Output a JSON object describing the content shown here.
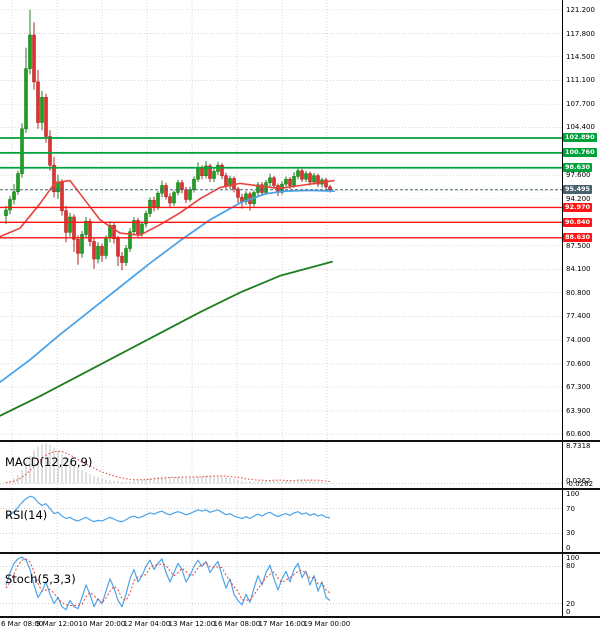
{
  "colors": {
    "background": "#ffffff",
    "grid": "#c9c9c9",
    "separator": "#111111",
    "axis_line": "#000000",
    "text": "#000000",
    "candle_up": "#1ba11b",
    "candle_up_border": "#0b6e0b",
    "candle_down": "#e03232",
    "candle_down_border": "#a81212",
    "ma_fast": "#e8423c",
    "ma_mid": "#4da3e8",
    "ma_slow": "#1e7d1e",
    "resistance_green": "#00a13a",
    "support_red": "#fe1414",
    "current_price_badge": "#48616f",
    "macd_hist": "#bfbfbf",
    "macd_signal": "#e8423c",
    "rsi_line": "#4da3e8",
    "stoch_k": "#4da3e8",
    "stoch_d": "#e8423c"
  },
  "chart_data": {
    "type": "candlestick",
    "x_axis": {
      "labels": [
        "6 Mar 08:00",
        "9 Mar 12:00",
        "10 Mar 20:00",
        "12 Mar 04:00",
        "13 Mar 12:00",
        "16 Mar 08:00",
        "17 Mar 16:00",
        "19 Mar 00:00"
      ]
    },
    "y_axis": {
      "range": [
        59.74,
        122.6
      ],
      "ticks": [
        "121.200",
        "117.800",
        "114.500",
        "111.100",
        "107.700",
        "104.400",
        "97.600",
        "94.200",
        "87.500",
        "84.100",
        "80.800",
        "77.400",
        "74.000",
        "70.600",
        "67.300",
        "63.900",
        "60.600"
      ],
      "grid_values": [
        121.2,
        117.8,
        114.5,
        111.1,
        107.7,
        104.4,
        101.0,
        97.6,
        94.2,
        90.8,
        87.5,
        84.1,
        80.8,
        77.4,
        74.0,
        70.6,
        67.3,
        63.9,
        60.6
      ]
    },
    "levels": {
      "resistance": [
        "102.890",
        "100.760",
        "98.630"
      ],
      "support": [
        "92.970",
        "90.840",
        "88.630"
      ],
      "current": "95.495"
    },
    "candles": [
      [
        91.8,
        93.2,
        90.6,
        92.6
      ],
      [
        92.6,
        94.6,
        92.0,
        94.1
      ],
      [
        94.1,
        96.3,
        93.4,
        95.2
      ],
      [
        95.2,
        98.2,
        94.8,
        97.8
      ],
      [
        97.8,
        105.0,
        97.2,
        104.2
      ],
      [
        104.2,
        115.8,
        103.6,
        112.8
      ],
      [
        112.8,
        121.2,
        112.0,
        117.6
      ],
      [
        117.6,
        119.4,
        109.8,
        110.9
      ],
      [
        110.9,
        112.6,
        104.2,
        105.1
      ],
      [
        105.1,
        109.6,
        104.0,
        108.7
      ],
      [
        108.7,
        109.2,
        102.2,
        103.1
      ],
      [
        103.1,
        104.0,
        98.2,
        99.0
      ],
      [
        99.0,
        100.2,
        94.4,
        95.2
      ],
      [
        95.2,
        97.6,
        94.2,
        96.6
      ],
      [
        96.6,
        97.0,
        91.8,
        92.5
      ],
      [
        92.5,
        93.2,
        88.0,
        89.4
      ],
      [
        89.4,
        92.2,
        88.8,
        91.6
      ],
      [
        91.6,
        92.0,
        86.6,
        88.4
      ],
      [
        88.4,
        89.0,
        84.8,
        86.4
      ],
      [
        86.4,
        89.6,
        85.8,
        89.1
      ],
      [
        89.1,
        91.6,
        88.6,
        91.0
      ],
      [
        91.0,
        91.4,
        87.4,
        88.1
      ],
      [
        88.1,
        88.6,
        84.2,
        85.6
      ],
      [
        85.6,
        88.0,
        85.0,
        87.4
      ],
      [
        87.4,
        87.8,
        85.2,
        86.1
      ],
      [
        86.1,
        89.0,
        85.6,
        88.6
      ],
      [
        88.6,
        91.0,
        88.0,
        90.4
      ],
      [
        90.4,
        90.8,
        87.8,
        88.5
      ],
      [
        88.5,
        88.9,
        84.6,
        86.0
      ],
      [
        86.0,
        86.6,
        84.0,
        85.1
      ],
      [
        85.1,
        87.6,
        84.6,
        87.1
      ],
      [
        87.1,
        90.0,
        86.6,
        89.5
      ],
      [
        89.5,
        91.6,
        89.0,
        91.1
      ],
      [
        91.1,
        91.5,
        88.6,
        89.2
      ],
      [
        89.2,
        91.0,
        88.8,
        90.6
      ],
      [
        90.6,
        92.5,
        90.1,
        92.1
      ],
      [
        92.1,
        94.4,
        91.6,
        94.0
      ],
      [
        94.0,
        94.5,
        92.4,
        93.0
      ],
      [
        93.0,
        95.3,
        92.6,
        95.0
      ],
      [
        95.0,
        96.8,
        94.4,
        96.1
      ],
      [
        96.1,
        96.5,
        94.1,
        94.5
      ],
      [
        94.5,
        95.0,
        93.0,
        93.6
      ],
      [
        93.6,
        95.4,
        93.2,
        95.1
      ],
      [
        95.1,
        96.9,
        94.7,
        96.5
      ],
      [
        96.5,
        96.9,
        95.0,
        95.5
      ],
      [
        95.5,
        95.9,
        93.6,
        94.1
      ],
      [
        94.1,
        95.9,
        93.8,
        95.5
      ],
      [
        95.5,
        97.4,
        95.1,
        97.0
      ],
      [
        97.0,
        99.4,
        96.6,
        98.6
      ],
      [
        98.6,
        99.0,
        97.0,
        97.5
      ],
      [
        97.5,
        99.6,
        97.1,
        98.9
      ],
      [
        98.9,
        99.2,
        96.6,
        97.1
      ],
      [
        97.1,
        98.5,
        96.6,
        98.1
      ],
      [
        98.1,
        99.5,
        97.6,
        99.0
      ],
      [
        99.0,
        99.3,
        97.0,
        97.5
      ],
      [
        97.5,
        97.9,
        95.6,
        96.0
      ],
      [
        96.0,
        97.5,
        95.6,
        97.1
      ],
      [
        97.1,
        97.4,
        95.1,
        95.6
      ],
      [
        95.6,
        95.9,
        93.6,
        94.4
      ],
      [
        94.4,
        94.9,
        92.8,
        93.8
      ],
      [
        93.8,
        95.3,
        93.3,
        94.9
      ],
      [
        94.9,
        95.2,
        92.5,
        93.5
      ],
      [
        93.5,
        95.4,
        93.1,
        95.1
      ],
      [
        95.1,
        96.6,
        94.6,
        96.2
      ],
      [
        96.2,
        96.6,
        94.6,
        95.1
      ],
      [
        95.1,
        96.9,
        94.8,
        96.5
      ],
      [
        96.5,
        97.8,
        96.0,
        97.2
      ],
      [
        97.2,
        97.5,
        95.6,
        96.1
      ],
      [
        96.1,
        96.4,
        94.6,
        95.1
      ],
      [
        95.1,
        96.7,
        94.8,
        96.3
      ],
      [
        96.3,
        97.4,
        95.9,
        97.0
      ],
      [
        97.0,
        97.3,
        95.6,
        96.1
      ],
      [
        96.1,
        98.0,
        95.8,
        97.4
      ],
      [
        97.4,
        98.6,
        97.0,
        98.2
      ],
      [
        98.2,
        98.5,
        96.6,
        97.0
      ],
      [
        97.0,
        98.2,
        96.6,
        97.8
      ],
      [
        97.8,
        98.1,
        96.1,
        96.6
      ],
      [
        96.6,
        97.9,
        96.2,
        97.5
      ],
      [
        97.5,
        97.8,
        95.9,
        96.3
      ],
      [
        96.3,
        97.2,
        95.8,
        96.9
      ],
      [
        96.9,
        97.2,
        95.4,
        95.9
      ],
      [
        95.9,
        96.2,
        95.1,
        95.495
      ]
    ],
    "overlays": {
      "ma_fast_red": [
        [
          0,
          88.8
        ],
        [
          20,
          90.0
        ],
        [
          40,
          93.5
        ],
        [
          55,
          96.5
        ],
        [
          70,
          96.8
        ],
        [
          85,
          94.0
        ],
        [
          100,
          91.2
        ],
        [
          120,
          89.3
        ],
        [
          140,
          89.0
        ],
        [
          160,
          90.5
        ],
        [
          180,
          92.2
        ],
        [
          200,
          94.2
        ],
        [
          220,
          95.8
        ],
        [
          240,
          96.4
        ],
        [
          260,
          96.0
        ],
        [
          280,
          95.7
        ],
        [
          300,
          96.1
        ],
        [
          320,
          96.5
        ],
        [
          334,
          96.8
        ]
      ],
      "ma_mid_blue": [
        [
          0,
          68.0
        ],
        [
          30,
          71.2
        ],
        [
          60,
          74.8
        ],
        [
          90,
          78.2
        ],
        [
          120,
          81.6
        ],
        [
          150,
          85.0
        ],
        [
          180,
          88.2
        ],
        [
          210,
          91.2
        ],
        [
          240,
          93.6
        ],
        [
          265,
          94.9
        ],
        [
          285,
          95.3
        ],
        [
          310,
          95.4
        ],
        [
          334,
          95.3
        ]
      ],
      "ma_slow_green": [
        [
          0,
          63.2
        ],
        [
          40,
          66.0
        ],
        [
          80,
          69.0
        ],
        [
          120,
          72.0
        ],
        [
          160,
          75.0
        ],
        [
          200,
          78.0
        ],
        [
          240,
          80.8
        ],
        [
          280,
          83.2
        ],
        [
          332,
          85.2
        ]
      ]
    },
    "indicators": {
      "macd": {
        "label": "MACD(12,26,9)",
        "range": [
          -1,
          9
        ],
        "axis_labels": [
          {
            "text": "8.7318",
            "v": 8.73
          },
          {
            "text": "0.0262",
            "v": 0.55
          },
          {
            "text": "-0.0262",
            "v": -0.45
          }
        ],
        "values": [
          0.3,
          0.6,
          1.0,
          1.8,
          3.0,
          4.5,
          6.0,
          7.2,
          8.0,
          8.5,
          8.73,
          8.4,
          7.8,
          7.0,
          6.2,
          5.4,
          4.6,
          3.9,
          3.3,
          2.8,
          2.4,
          2.0,
          1.6,
          1.3,
          1.0,
          0.8,
          0.7,
          0.6,
          0.5,
          0.4,
          0.4,
          0.5,
          0.6,
          0.7,
          0.8,
          1.0,
          1.2,
          1.3,
          1.4,
          1.5,
          1.5,
          1.4,
          1.4,
          1.5,
          1.5,
          1.4,
          1.3,
          1.4,
          1.5,
          1.6,
          1.7,
          1.7,
          1.7,
          1.7,
          1.6,
          1.4,
          1.2,
          1.0,
          0.8,
          0.6,
          0.5,
          0.4,
          0.4,
          0.5,
          0.5,
          0.6,
          0.7,
          0.7,
          0.6,
          0.6,
          0.6,
          0.6,
          0.7,
          0.8,
          0.8,
          0.8,
          0.7,
          0.6,
          0.5,
          0.3,
          0.1,
          -0.03
        ],
        "signal": [
          0.2,
          0.3,
          0.5,
          0.8,
          1.3,
          2.0,
          2.8,
          3.7,
          4.6,
          5.4,
          6.1,
          6.6,
          6.9,
          7.0,
          6.9,
          6.6,
          6.2,
          5.7,
          5.2,
          4.7,
          4.2,
          3.8,
          3.3,
          2.9,
          2.5,
          2.2,
          1.9,
          1.6,
          1.4,
          1.2,
          1.0,
          0.9,
          0.8,
          0.8,
          0.8,
          0.8,
          0.9,
          1.0,
          1.1,
          1.1,
          1.2,
          1.3,
          1.3,
          1.3,
          1.4,
          1.4,
          1.4,
          1.4,
          1.4,
          1.4,
          1.5,
          1.5,
          1.6,
          1.6,
          1.6,
          1.6,
          1.5,
          1.4,
          1.3,
          1.2,
          1.0,
          0.9,
          0.8,
          0.7,
          0.7,
          0.6,
          0.6,
          0.7,
          0.7,
          0.7,
          0.6,
          0.6,
          0.6,
          0.7,
          0.7,
          0.7,
          0.7,
          0.7,
          0.7,
          0.6,
          0.5,
          0.4
        ]
      },
      "rsi": {
        "label": "RSI(14)",
        "range": [
          0,
          100
        ],
        "ticks": [
          "100",
          "70",
          "30",
          "0"
        ],
        "levels": [
          70,
          30
        ],
        "values": [
          55,
          60,
          65,
          72,
          80,
          86,
          90,
          88,
          80,
          75,
          78,
          70,
          62,
          64,
          58,
          54,
          56,
          52,
          50,
          53,
          56,
          52,
          49,
          51,
          50,
          53,
          56,
          53,
          50,
          49,
          52,
          56,
          58,
          55,
          57,
          60,
          63,
          61,
          64,
          66,
          62,
          60,
          63,
          65,
          63,
          60,
          62,
          65,
          68,
          66,
          68,
          64,
          66,
          68,
          64,
          60,
          62,
          58,
          56,
          54,
          57,
          54,
          58,
          61,
          58,
          62,
          64,
          60,
          57,
          60,
          62,
          59,
          63,
          65,
          61,
          63,
          59,
          62,
          58,
          60,
          56,
          55
        ]
      },
      "stoch": {
        "label": "Stoch(5,3,3)",
        "range": [
          0,
          100
        ],
        "ticks": [
          "100",
          "80",
          "20",
          "0"
        ],
        "levels": [
          80,
          20
        ],
        "k": [
          50,
          70,
          85,
          92,
          95,
          90,
          75,
          50,
          30,
          40,
          55,
          35,
          20,
          30,
          15,
          10,
          25,
          15,
          12,
          30,
          50,
          35,
          15,
          28,
          20,
          40,
          60,
          45,
          25,
          15,
          35,
          60,
          75,
          55,
          65,
          80,
          90,
          75,
          85,
          92,
          70,
          55,
          70,
          85,
          75,
          55,
          65,
          80,
          90,
          80,
          88,
          70,
          80,
          88,
          65,
          45,
          60,
          35,
          25,
          18,
          35,
          22,
          45,
          65,
          50,
          70,
          82,
          60,
          42,
          60,
          72,
          55,
          75,
          85,
          62,
          72,
          50,
          65,
          40,
          55,
          30,
          25
        ],
        "d": [
          45,
          55,
          68,
          82,
          90,
          92,
          87,
          72,
          52,
          40,
          42,
          43,
          37,
          28,
          22,
          18,
          17,
          17,
          17,
          19,
          31,
          38,
          33,
          26,
          21,
          29,
          40,
          48,
          43,
          28,
          25,
          37,
          57,
          63,
          65,
          67,
          78,
          82,
          83,
          84,
          82,
          72,
          65,
          70,
          77,
          72,
          65,
          67,
          78,
          83,
          86,
          79,
          79,
          79,
          78,
          66,
          57,
          47,
          40,
          26,
          26,
          25,
          34,
          44,
          53,
          62,
          67,
          71,
          61,
          54,
          58,
          62,
          67,
          72,
          74,
          69,
          61,
          62,
          52,
          53,
          42,
          37
        ]
      }
    }
  }
}
